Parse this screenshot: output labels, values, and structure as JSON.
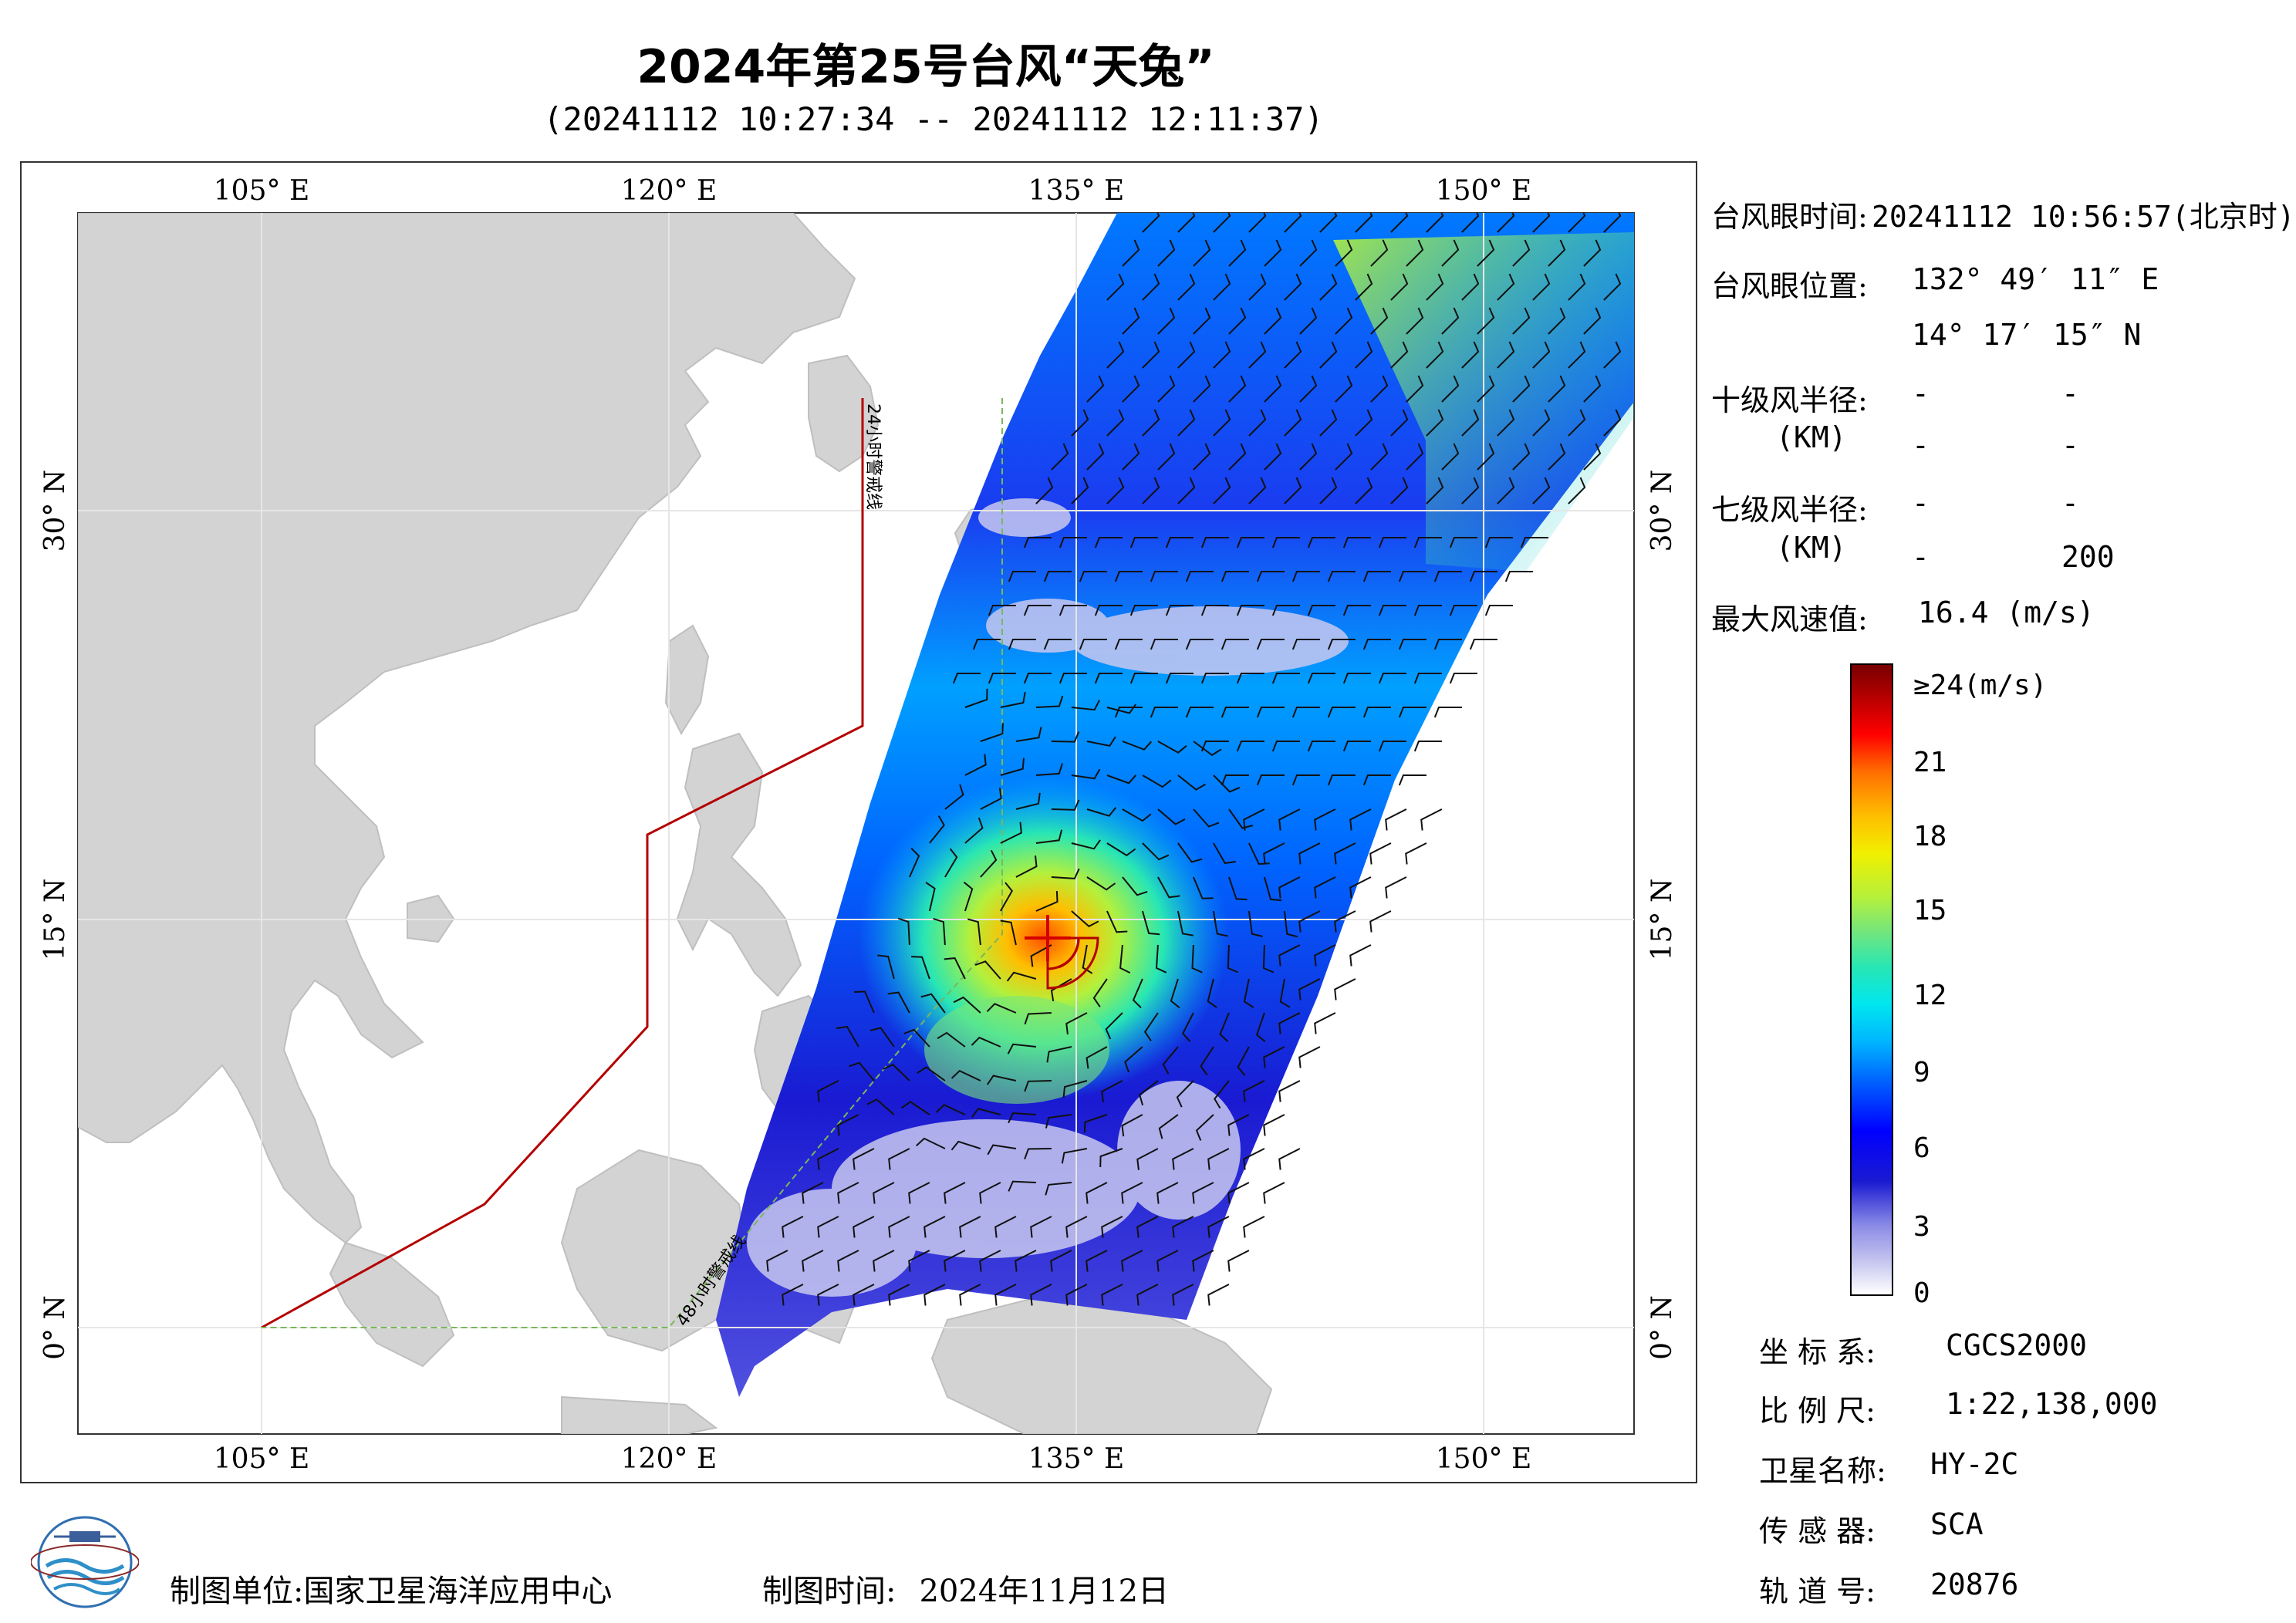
{
  "title": "2024年第25号台风“天兔”",
  "subtitle": "(20241112 10:27:34 -- 20241112 12:11:37)",
  "axes": {
    "lon_labels": [
      "105° E",
      "120° E",
      "135° E",
      "150° E"
    ],
    "lat_labels": [
      "30° N",
      "15° N",
      "0° N"
    ],
    "lon_values": [
      105,
      120,
      135,
      150
    ],
    "lat_values": [
      30,
      15,
      0
    ]
  },
  "map_lines": {
    "warning_24h": "24小时警戒线",
    "warning_48h": "48小时警戒线"
  },
  "info": {
    "eye_time_label": "台风眼时间:",
    "eye_time_value": "20241112 10:56:57(北京时)",
    "eye_pos_label": "台风眼位置:",
    "eye_lon": "132° 49′ 11″ E",
    "eye_lat": "14° 17′ 15″ N",
    "r10_label": "十级风半径:",
    "r10_unit": "(KM)",
    "r10_v1": "-",
    "r10_v2": "-",
    "r10_v3": "-",
    "r10_v4": "-",
    "r7_label": "七级风半径:",
    "r7_unit": "(KM)",
    "r7_v1": "-",
    "r7_v2": "-",
    "r7_v3": "-",
    "r7_v4": "200",
    "max_wind_label": "最大风速值:",
    "max_wind_value": "16.4  (m/s)"
  },
  "colorbar": {
    "labels": [
      "≥24(m/s)",
      "21",
      "18",
      "15",
      "12",
      "9",
      "6",
      "3",
      "0"
    ]
  },
  "meta": {
    "coord_label": "坐 标 系:",
    "coord_value": "CGCS2000",
    "scale_label": "比 例 尺:",
    "scale_value": "1:22,138,000",
    "sat_label": "卫星名称:",
    "sat_value": "HY-2C",
    "sensor_label": "传 感 器:",
    "sensor_value": "SCA",
    "orbit_label": "轨 道 号:",
    "orbit_value": "20876"
  },
  "footer": {
    "unit_label": "制图单位:",
    "unit_value": "国家卫星海洋应用中心",
    "time_label": "制图时间:",
    "time_value": "2024年11月12日"
  },
  "colors": {
    "land": "#d3d3d3",
    "warning_line": "#b40000",
    "warning_48h_line": "#7ab85a",
    "swath_low": "#1a1ad2",
    "swath_mid": "#00b4ff",
    "swath_high": "#f0f000"
  }
}
